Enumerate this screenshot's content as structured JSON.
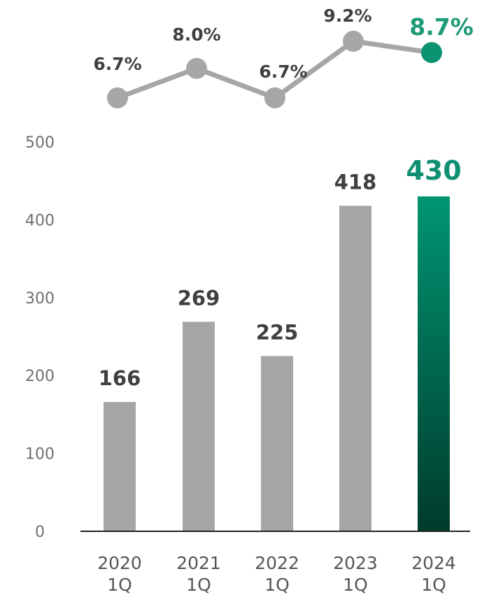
{
  "chart_data": [
    {
      "type": "line",
      "categories": [
        "2020 1Q",
        "2021 1Q",
        "2022 1Q",
        "2023 1Q",
        "2024 1Q"
      ],
      "values": [
        6.7,
        8.0,
        6.7,
        9.2,
        8.7
      ],
      "value_labels": [
        "6.7%",
        "8.0%",
        "6.7%",
        "9.2%",
        "8.7%"
      ],
      "highlight_index": 4,
      "colors": {
        "line": "#a6a6a6",
        "highlight": "#0b9271",
        "label": "#3f3f3f",
        "highlight_label": "#1e9a77"
      }
    },
    {
      "type": "bar",
      "categories": [
        "2020 1Q",
        "2021 1Q",
        "2022 1Q",
        "2023 1Q",
        "2024 1Q"
      ],
      "x_tick_labels": [
        [
          "2020",
          "1Q"
        ],
        [
          "2021",
          "1Q"
        ],
        [
          "2022",
          "1Q"
        ],
        [
          "2023",
          "1Q"
        ],
        [
          "2024",
          "1Q"
        ]
      ],
      "values": [
        166,
        269,
        225,
        418,
        430
      ],
      "value_labels": [
        "166",
        "269",
        "225",
        "418",
        "430"
      ],
      "highlight_index": 4,
      "ylim": [
        0,
        500
      ],
      "yticks": [
        0,
        100,
        200,
        300,
        400,
        500
      ],
      "ytick_labels": [
        "0",
        "100",
        "200",
        "300",
        "400",
        "500"
      ],
      "grid": false,
      "colors": {
        "bar": "#a6a6a6",
        "highlight_top": "#009573",
        "highlight_bottom": "#003b2c",
        "axis": "#222222"
      }
    }
  ]
}
